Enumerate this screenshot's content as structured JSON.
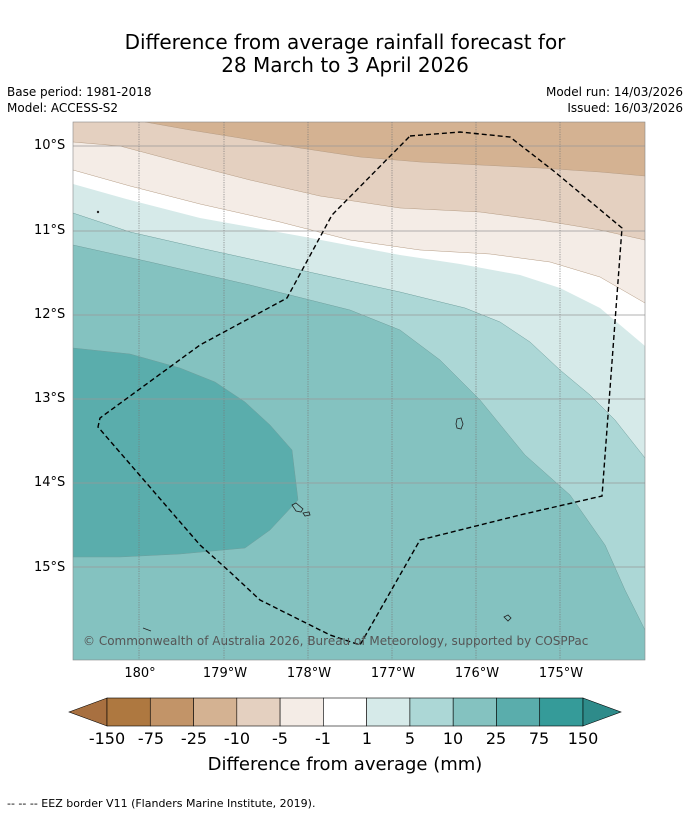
{
  "header": {
    "title_line1": "Difference from average rainfall forecast for",
    "title_line2": "28 March to 3 April 2026",
    "base_period": "Base period: 1981-2018",
    "model": "Model: ACCESS-S2",
    "model_run": "Model run: 14/03/2026",
    "issued": "Issued: 16/03/2026"
  },
  "map": {
    "lat_labels": [
      "10°S",
      "11°S",
      "12°S",
      "13°S",
      "14°S",
      "15°S"
    ],
    "lon_labels": [
      "180°",
      "179°W",
      "178°W",
      "177°W",
      "176°W",
      "175°W"
    ],
    "copyright": "© Commonwealth of Australia 2026, Bureau of Meteorology, supported by COSPPac"
  },
  "colorbar": {
    "ticks": [
      "-150",
      "-75",
      "-25",
      "-10",
      "-5",
      "-1",
      "1",
      "5",
      "10",
      "25",
      "75",
      "150"
    ],
    "label": "Difference from average (mm)",
    "colors": [
      "#a87040",
      "#ae7840",
      "#c29468",
      "#d4b292",
      "#e4d0c0",
      "#f4ece6",
      "#ffffff",
      "#d6eae9",
      "#acd7d6",
      "#84c2c0",
      "#5aadac",
      "#359b99",
      "#2e8b8a"
    ]
  },
  "footer": {
    "eez_note": "--  --  -- EEZ border V11 (Flanders Marine Institute, 2019)."
  }
}
